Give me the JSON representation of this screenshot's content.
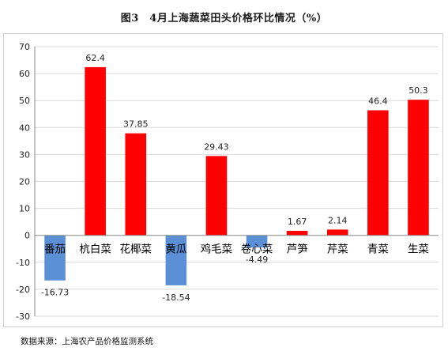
{
  "chart_title": "图3　4月上海蔬菜田头价格环比情况（%）",
  "source": "数据来源：上海农产品价格监测系统",
  "chart_data": {
    "type": "bar",
    "title": "图3　4月上海蔬菜田头价格环比情况（%）",
    "xlabel": "",
    "ylabel": "",
    "categories": [
      "番茄",
      "杭白菜",
      "花椰菜",
      "黄瓜",
      "鸡毛菜",
      "卷心菜",
      "芦笋",
      "芹菜",
      "青菜",
      "生菜"
    ],
    "values": [
      -16.73,
      62.4,
      37.85,
      -18.54,
      29.43,
      -4.49,
      1.67,
      2.14,
      46.4,
      50.3
    ],
    "value_labels": [
      "-16.73",
      "62.4",
      "37.85",
      "-18.54",
      "29.43",
      "-4.49",
      "1.67",
      "2.14",
      "46.4",
      "50.3"
    ],
    "ylim": [
      -30,
      70
    ],
    "yticks": [
      -30,
      -20,
      -10,
      0,
      10,
      20,
      30,
      40,
      50,
      60,
      70
    ],
    "grid": true,
    "legend": "none",
    "colors": {
      "positive": "#ff0000",
      "negative": "#5b8fd6",
      "grid": "#d9d9d9",
      "axis": "#888888"
    }
  }
}
